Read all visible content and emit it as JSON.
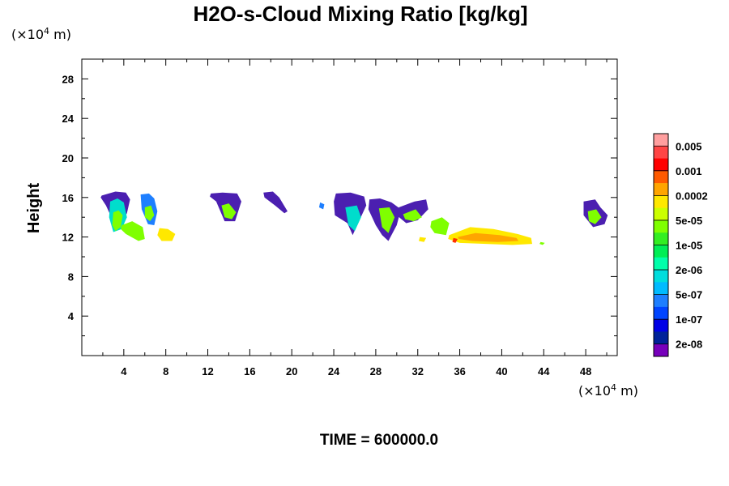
{
  "chart_data": {
    "type": "heatmap",
    "title": "H2O-s-Cloud Mixing Ratio [kg/kg]",
    "ylabel": "Height",
    "x_unit": "(×10⁴ m)",
    "y_unit": "(×10⁴ m)",
    "x_unit_prefix": "(×10",
    "x_unit_exp": "4",
    "x_unit_suffix": " m)",
    "y_unit_prefix": "(×10",
    "y_unit_exp": "4",
    "y_unit_suffix": " m)",
    "xlim": [
      0,
      51
    ],
    "ylim": [
      0,
      30
    ],
    "x_ticks": [
      "4",
      "8",
      "12",
      "16",
      "20",
      "24",
      "28",
      "32",
      "36",
      "40",
      "44",
      "48"
    ],
    "x_tick_values": [
      4,
      8,
      12,
      16,
      20,
      24,
      28,
      32,
      36,
      40,
      44,
      48
    ],
    "y_ticks": [
      "4",
      "8",
      "12",
      "16",
      "20",
      "24",
      "28"
    ],
    "y_tick_values": [
      4,
      8,
      12,
      16,
      20,
      24,
      28
    ],
    "grid": false,
    "colorbar": {
      "labels": [
        "0.005",
        "0.001",
        "0.0002",
        "5e-05",
        "1e-05",
        "2e-06",
        "5e-07",
        "1e-07",
        "2e-08"
      ],
      "colors_top_to_bottom": [
        "#ff9f9f",
        "#ff4545",
        "#ff0000",
        "#ff5a00",
        "#ffa500",
        "#ffe800",
        "#ccff00",
        "#7fff00",
        "#33ee22",
        "#00ee55",
        "#00ffaa",
        "#00dddd",
        "#00bbff",
        "#1e7fff",
        "#0044ff",
        "#0000e6",
        "#002299",
        "#7700bb"
      ]
    },
    "footer": "TIME = 600000.0",
    "cloud_blobs": [
      {
        "x": [
          1.9,
          3.2,
          4.2,
          4.6,
          4.3,
          3.6,
          2.9,
          2.3,
          1.8
        ],
        "y": [
          16.2,
          16.6,
          16.5,
          15.8,
          14.4,
          13.0,
          13.8,
          15.2,
          16.0
        ],
        "level": 0
      },
      {
        "x": [
          2.7,
          3.4,
          4.0,
          4.3,
          3.8,
          3.0,
          2.6
        ],
        "y": [
          15.6,
          15.9,
          15.5,
          14.0,
          12.8,
          12.5,
          14.0
        ],
        "level": 2
      },
      {
        "x": [
          3.0,
          3.5,
          3.9,
          3.7,
          3.2,
          2.9
        ],
        "y": [
          14.5,
          14.7,
          14.2,
          13.0,
          12.6,
          13.2
        ],
        "level": 3
      },
      {
        "x": [
          3.8,
          4.8,
          5.8,
          6.0,
          5.4,
          4.2,
          3.7
        ],
        "y": [
          13.2,
          13.6,
          13.0,
          11.8,
          11.6,
          12.3,
          12.8
        ],
        "level": 3
      },
      {
        "x": [
          5.6,
          6.4,
          6.9,
          7.2,
          6.9,
          6.3,
          5.7
        ],
        "y": [
          16.3,
          16.4,
          15.9,
          14.6,
          13.2,
          13.3,
          14.8
        ],
        "level": 1
      },
      {
        "x": [
          6.0,
          6.6,
          6.9,
          6.5,
          6.0
        ],
        "y": [
          15.0,
          15.2,
          14.2,
          13.6,
          14.0
        ],
        "level": 3
      },
      {
        "x": [
          7.4,
          8.2,
          8.9,
          8.6,
          7.6,
          7.2
        ],
        "y": [
          12.9,
          12.8,
          12.3,
          11.6,
          11.6,
          12.2
        ],
        "level": 4
      },
      {
        "x": [
          12.3,
          13.4,
          14.8,
          15.2,
          14.6,
          13.6,
          12.8,
          12.2
        ],
        "y": [
          16.4,
          16.5,
          16.4,
          15.6,
          13.6,
          13.6,
          15.6,
          16.1
        ],
        "level": 0
      },
      {
        "x": [
          13.3,
          14.0,
          14.7,
          14.3,
          13.6
        ],
        "y": [
          15.2,
          15.4,
          14.5,
          13.8,
          14.0
        ],
        "level": 3
      },
      {
        "x": [
          17.3,
          18.2,
          18.8,
          19.6,
          19.3,
          18.4,
          17.4
        ],
        "y": [
          16.5,
          16.6,
          16.0,
          14.6,
          14.4,
          15.2,
          16.0
        ],
        "level": 0
      },
      {
        "x": [
          22.7,
          23.1,
          23.0,
          22.6
        ],
        "y": [
          15.5,
          15.3,
          14.8,
          15.0
        ],
        "level": 1
      },
      {
        "x": [
          24.2,
          25.6,
          26.9,
          27.1,
          26.4,
          25.8,
          25.3,
          24.1,
          24.0
        ],
        "y": [
          16.4,
          16.5,
          16.1,
          15.2,
          13.6,
          12.2,
          13.4,
          14.2,
          15.6
        ],
        "level": 0
      },
      {
        "x": [
          25.1,
          26.2,
          26.6,
          26.0,
          25.4
        ],
        "y": [
          15.0,
          15.2,
          14.0,
          12.6,
          13.2
        ],
        "level": 2
      },
      {
        "x": [
          27.4,
          28.4,
          29.5,
          30.4,
          30.0,
          29.2,
          28.6,
          28.0,
          27.3
        ],
        "y": [
          15.8,
          15.9,
          15.5,
          14.8,
          13.2,
          11.6,
          12.2,
          13.2,
          14.8
        ],
        "level": 0
      },
      {
        "x": [
          28.3,
          29.3,
          29.8,
          29.2,
          28.6
        ],
        "y": [
          14.9,
          15.0,
          14.0,
          12.4,
          13.0
        ],
        "level": 3
      },
      {
        "x": [
          30.2,
          31.7,
          32.8,
          33.0,
          32.0,
          30.9,
          30.0
        ],
        "y": [
          15.0,
          15.6,
          15.8,
          14.8,
          13.7,
          13.4,
          14.2
        ],
        "level": 0
      },
      {
        "x": [
          30.6,
          31.8,
          32.4,
          31.6,
          30.8
        ],
        "y": [
          14.3,
          14.8,
          14.0,
          13.6,
          13.8
        ],
        "level": 3
      },
      {
        "x": [
          33.3,
          34.3,
          35.0,
          34.7,
          33.6,
          33.2
        ],
        "y": [
          13.6,
          14.0,
          13.4,
          12.2,
          12.4,
          13.0
        ],
        "level": 3
      },
      {
        "x": [
          32.2,
          32.8,
          32.6,
          32.1
        ],
        "y": [
          12.0,
          11.9,
          11.5,
          11.6
        ],
        "level": 4
      },
      {
        "x": [
          35.0,
          37.0,
          39.2,
          41.5,
          42.8,
          42.9,
          41.0,
          38.5,
          36.0,
          34.9
        ],
        "y": [
          12.2,
          13.0,
          12.8,
          12.3,
          11.9,
          11.3,
          11.2,
          11.3,
          11.4,
          11.8
        ],
        "level": 4
      },
      {
        "x": [
          35.8,
          37.5,
          39.8,
          41.4,
          41.6,
          39.6,
          37.2,
          35.9
        ],
        "y": [
          12.0,
          12.4,
          12.2,
          11.9,
          11.6,
          11.5,
          11.6,
          11.8
        ],
        "level": 5
      },
      {
        "x": [
          35.4,
          35.8,
          35.6,
          35.3
        ],
        "y": [
          11.9,
          11.8,
          11.4,
          11.5
        ],
        "level": 6
      },
      {
        "x": [
          43.7,
          44.1,
          43.9,
          43.6
        ],
        "y": [
          11.5,
          11.4,
          11.2,
          11.3
        ],
        "level": 3
      },
      {
        "x": [
          47.8,
          48.9,
          49.4,
          50.1,
          49.8,
          48.7,
          47.8
        ],
        "y": [
          15.6,
          15.8,
          15.0,
          14.2,
          13.3,
          13.0,
          14.2
        ],
        "level": 0
      },
      {
        "x": [
          48.2,
          49.0,
          49.5,
          48.9,
          48.3
        ],
        "y": [
          14.6,
          14.8,
          14.0,
          13.3,
          13.6
        ],
        "level": 3
      }
    ]
  }
}
